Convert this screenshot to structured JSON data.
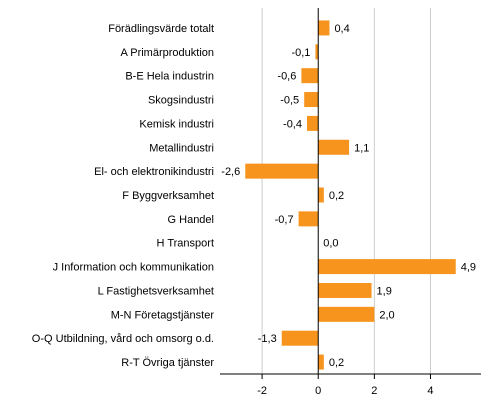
{
  "chart_data": {
    "type": "bar",
    "orientation": "horizontal",
    "categories": [
      "Förädlingsvärde totalt",
      "A Primärproduktion",
      "B-E Hela industrin",
      "Skogsindustri",
      "Kemisk industri",
      "Metallindustri",
      "El- och elektronikindustri",
      "F Byggverksamhet",
      "G Handel",
      "H Transport",
      "J Information och kommunikation",
      "L Fastighetsverksamhet",
      "M-N Företagstjänster",
      "O-Q Utbildning, vård och omsorg o.d.",
      "R-T Övriga tjänster"
    ],
    "values": [
      0.4,
      -0.1,
      -0.6,
      -0.5,
      -0.4,
      1.1,
      -2.6,
      0.2,
      -0.7,
      0.0,
      4.9,
      1.9,
      2.0,
      -1.3,
      0.2
    ],
    "value_labels": [
      "0,4",
      "-0,1",
      "-0,6",
      "-0,5",
      "-0,4",
      "1,1",
      "-2,6",
      "0,2",
      "-0,7",
      "0,0",
      "4,9",
      "1,9",
      "2,0",
      "-1,3",
      "0,2"
    ],
    "xlim": [
      -3.5,
      5.8
    ],
    "xticks": [
      -2,
      0,
      2,
      4
    ],
    "xtick_labels": [
      "-2",
      "0",
      "2",
      "4"
    ],
    "grid": true,
    "bar_color": "#f7941d",
    "title": "",
    "xlabel": "",
    "ylabel": ""
  }
}
